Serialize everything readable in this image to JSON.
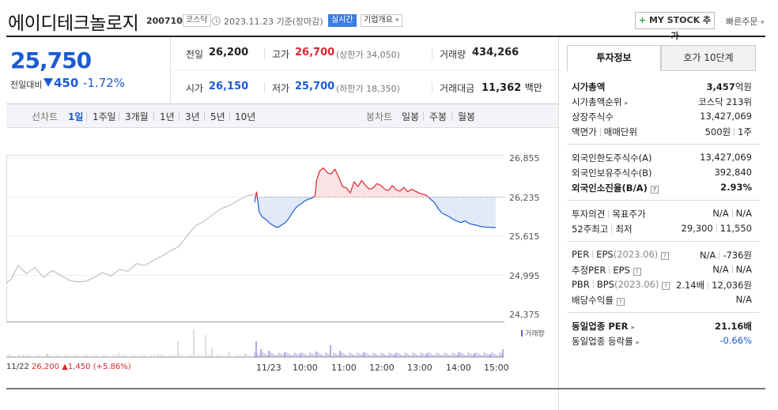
{
  "header": {
    "stock_name": "에이디테크놀로지",
    "stock_code": "200710",
    "market": "코스닥",
    "date": "2023.11.23",
    "basis": "기준(장마감)",
    "realtime": "실시간",
    "company_info": "기업개요",
    "mystock_label": "MY STOCK 추가",
    "quick_order": "빠른주문"
  },
  "price": {
    "current": "25,750",
    "change_label": "전일대비",
    "change_value": "450",
    "change_pct": "-1.72%",
    "direction": "down"
  },
  "info": {
    "prev_close_label": "전일",
    "prev_close": "26,200",
    "high_label": "고가",
    "high": "26,700",
    "upper_limit": "(상한가 34,050)",
    "volume_label": "거래량",
    "volume": "434,266",
    "open_label": "시가",
    "open": "26,150",
    "low_label": "저가",
    "low": "25,700",
    "lower_limit": "(하한가 18,350)",
    "amount_label": "거래대금",
    "amount": "11,362",
    "amount_unit": "백만"
  },
  "toolbar": {
    "line_chart_label": "선차트",
    "periods": [
      "1일",
      "1주일",
      "3개월",
      "1년",
      "3년",
      "5년",
      "10년"
    ],
    "active_period": "1일",
    "candle_chart_label": "봉차트",
    "candles": [
      "일봉",
      "주봉",
      "월봉"
    ]
  },
  "chart_data": {
    "type": "line",
    "y_ticks": [
      "26,855",
      "26,235",
      "25,615",
      "24,995",
      "24,375"
    ],
    "ylim": [
      24375,
      26855
    ],
    "reference_price": 26235,
    "x_ticks": [
      "11/23",
      "10:00",
      "11:00",
      "12:00",
      "13:00",
      "14:00",
      "15:00"
    ],
    "prev_day_label": "11/22",
    "prev_day_close": "26,200",
    "prev_day_change": "▲1,450 (+5.86%)",
    "volume_legend": "거래량",
    "prev_day_series": [
      [
        0,
        24870
      ],
      [
        0.03,
        24940
      ],
      [
        0.07,
        25150
      ],
      [
        0.12,
        25020
      ],
      [
        0.17,
        25120
      ],
      [
        0.22,
        24960
      ],
      [
        0.27,
        25070
      ],
      [
        0.32,
        25000
      ],
      [
        0.37,
        24920
      ],
      [
        0.42,
        24890
      ],
      [
        0.47,
        24900
      ],
      [
        0.52,
        24960
      ],
      [
        0.57,
        25040
      ],
      [
        0.62,
        24980
      ],
      [
        0.67,
        25090
      ],
      [
        0.72,
        25060
      ],
      [
        0.77,
        25180
      ],
      [
        0.82,
        25150
      ],
      [
        0.87,
        25230
      ],
      [
        0.92,
        25300
      ],
      [
        0.97,
        25380
      ],
      [
        1.02,
        25450
      ],
      [
        1.07,
        25620
      ],
      [
        1.12,
        25780
      ],
      [
        1.17,
        25850
      ],
      [
        1.22,
        25950
      ],
      [
        1.27,
        26050
      ],
      [
        1.32,
        26100
      ],
      [
        1.37,
        26180
      ],
      [
        1.42,
        26250
      ],
      [
        1.47,
        26280
      ]
    ],
    "today_series": [
      [
        9.0,
        26150
      ],
      [
        9.05,
        26320
      ],
      [
        9.12,
        26000
      ],
      [
        9.2,
        25920
      ],
      [
        9.3,
        25880
      ],
      [
        9.4,
        25820
      ],
      [
        9.5,
        25780
      ],
      [
        9.6,
        25750
      ],
      [
        9.7,
        25790
      ],
      [
        9.8,
        25830
      ],
      [
        9.9,
        25900
      ],
      [
        10.0,
        26000
      ],
      [
        10.1,
        26080
      ],
      [
        10.2,
        26120
      ],
      [
        10.3,
        26170
      ],
      [
        10.4,
        26200
      ],
      [
        10.5,
        26220
      ],
      [
        10.58,
        26250
      ],
      [
        10.62,
        26500
      ],
      [
        10.7,
        26650
      ],
      [
        10.8,
        26700
      ],
      [
        10.9,
        26620
      ],
      [
        11.0,
        26600
      ],
      [
        11.1,
        26680
      ],
      [
        11.2,
        26550
      ],
      [
        11.3,
        26400
      ],
      [
        11.4,
        26380
      ],
      [
        11.5,
        26300
      ],
      [
        11.6,
        26480
      ],
      [
        11.7,
        26400
      ],
      [
        11.8,
        26500
      ],
      [
        11.9,
        26420
      ],
      [
        12.0,
        26360
      ],
      [
        12.1,
        26380
      ],
      [
        12.2,
        26450
      ],
      [
        12.3,
        26420
      ],
      [
        12.4,
        26360
      ],
      [
        12.5,
        26340
      ],
      [
        12.6,
        26420
      ],
      [
        12.7,
        26350
      ],
      [
        12.8,
        26330
      ],
      [
        12.9,
        26390
      ],
      [
        13.0,
        26320
      ],
      [
        13.1,
        26360
      ],
      [
        13.2,
        26330
      ],
      [
        13.3,
        26300
      ],
      [
        13.4,
        26280
      ],
      [
        13.5,
        26260
      ],
      [
        13.6,
        26200
      ],
      [
        13.7,
        26150
      ],
      [
        13.8,
        26050
      ],
      [
        13.9,
        25980
      ],
      [
        14.0,
        25950
      ],
      [
        14.1,
        25920
      ],
      [
        14.2,
        25880
      ],
      [
        14.3,
        25850
      ],
      [
        14.4,
        25830
      ],
      [
        14.5,
        25860
      ],
      [
        14.6,
        25820
      ],
      [
        14.7,
        25800
      ],
      [
        14.8,
        25790
      ],
      [
        14.9,
        25770
      ],
      [
        15.0,
        25760
      ],
      [
        15.3,
        25750
      ]
    ]
  },
  "invest_tabs": [
    "투자정보",
    "호가 10단계"
  ],
  "invest": {
    "g1": [
      {
        "label": "시가총액",
        "value": "3,457",
        "unit": "억원"
      },
      {
        "label": "시가총액순위",
        "value": "코스닥 213위"
      },
      {
        "label": "상장주식수",
        "value": "13,427,069"
      },
      {
        "label": "액면가",
        "label2": "매매단위",
        "value": "500원",
        "value2": "1주"
      }
    ],
    "g2": [
      {
        "label": "외국인한도주식수(A)",
        "value": "13,427,069"
      },
      {
        "label": "외국인보유주식수(B)",
        "value": "392,840"
      },
      {
        "label": "외국인소진율(B/A)",
        "value": "2.93%"
      }
    ],
    "g3": [
      {
        "label": "투자의견",
        "label2": "목표주가",
        "value": "N/A",
        "value2": "N/A"
      },
      {
        "label": "52주최고",
        "label2": "최저",
        "value": "29,300",
        "value2": "11,550"
      }
    ],
    "g4": [
      {
        "label": "PER",
        "label2": "EPS",
        "label2_sub": "(2023.06)",
        "value": "N/A",
        "value2": "-736원"
      },
      {
        "label": "추정PER",
        "label2": "EPS",
        "value": "N/A",
        "value2": "N/A"
      },
      {
        "label": "PBR",
        "label2": "BPS",
        "label2_sub": "(2023.06)",
        "value": "2.14배",
        "value2": "12,036원"
      },
      {
        "label": "배당수익률",
        "value": "N/A"
      }
    ],
    "g5": [
      {
        "label": "동일업종 PER",
        "value": "21.16배"
      },
      {
        "label": "동일업종 등락률",
        "value": "-0.66%"
      }
    ]
  },
  "colors": {
    "up": "#d9272e",
    "down": "#1b5bd3",
    "prev_line": "#b5b5b5",
    "volume": "#6a5acd"
  }
}
